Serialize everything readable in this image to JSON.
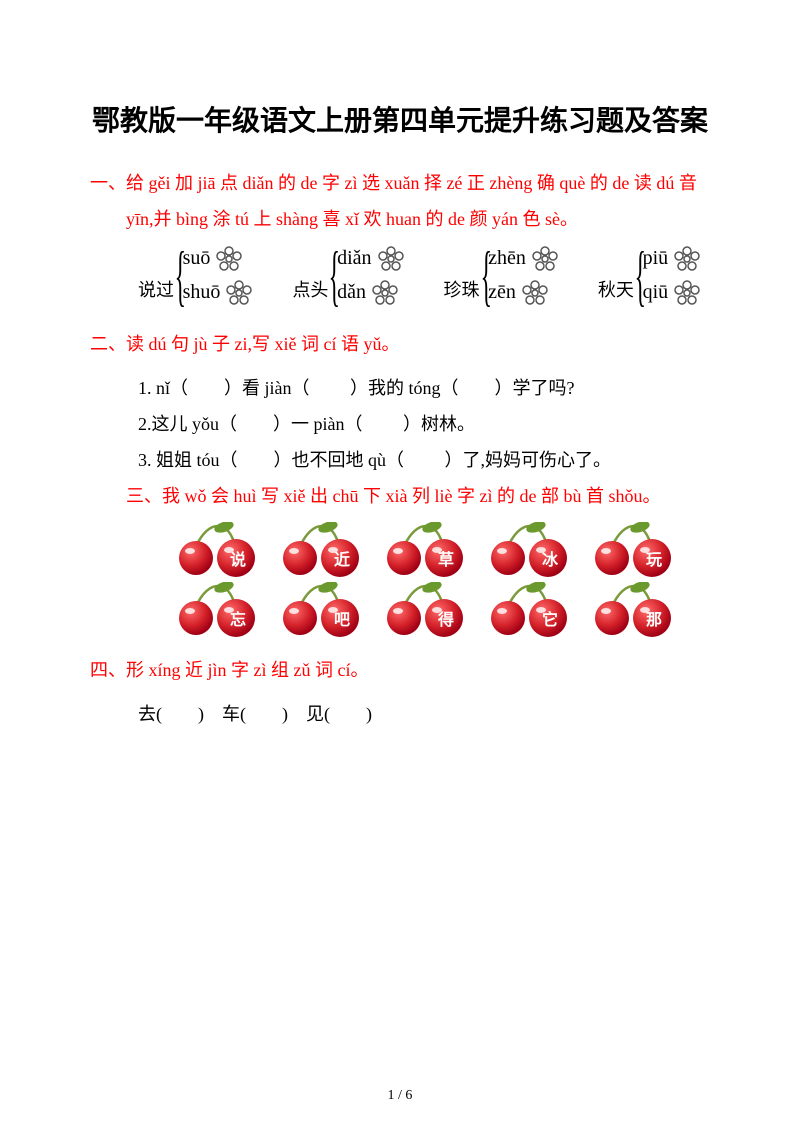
{
  "title": "鄂教版一年级语文上册第四单元提升练习题及答案",
  "sections": {
    "one": "一、给 gěi 加 jiā 点 diǎn 的 de 字 zì 选 xuǎn 择 zé 正 zhèng 确 què 的 de 读 dú 音 yīn,并 bìng 涂 tú 上 shàng 喜 xǐ 欢 huan 的 de 颜 yán 色 sè。",
    "two": "二、读 dú 句 jù 子 zi,写 xiě 词 cí 语 yǔ。",
    "three": "三、我 wǒ 会 huì 写 xiě 出 chū 下 xià 列 liè 字 zì 的 de 部 bù 首 shǒu。",
    "four": "四、形 xíng 近 jìn 字 zì 组 zǔ 词 cí。"
  },
  "pinyin_groups": [
    {
      "label": "说过",
      "opts": [
        "suō",
        "shuō"
      ]
    },
    {
      "label": "点头",
      "opts": [
        "diǎn",
        "dǎn"
      ]
    },
    {
      "label": "珍珠",
      "opts": [
        "zhēn",
        "zēn"
      ]
    },
    {
      "label": "秋天",
      "opts": [
        "piū",
        "qiū"
      ]
    }
  ],
  "q2": {
    "l1": "1. nǐ（　　）看 jiàn（　　 ）我的 tóng（　　）学了吗?",
    "l2": "2.这儿 yǒu（　　）一 piàn（　　 ）树林。",
    "l3": "3. 姐姐 tóu（　　）也不回地 qù（　　 ）了,妈妈可伤心了。"
  },
  "cherries": {
    "row1": [
      "说",
      "近",
      "草",
      "冰",
      "玩"
    ],
    "row2": [
      "忘",
      "吧",
      "得",
      "它",
      "那"
    ]
  },
  "q4": "去(　　)　车(　　)　见(　　)",
  "footer": "1 / 6",
  "colors": {
    "heading": "#ff0000",
    "cherry_fill": "#d4222a",
    "cherry_dark": "#a00015",
    "cherry_highlight": "#ffffff",
    "stem": "#7a9a3c",
    "leaf": "#6a9a2e",
    "flower_stroke": "#555555"
  }
}
